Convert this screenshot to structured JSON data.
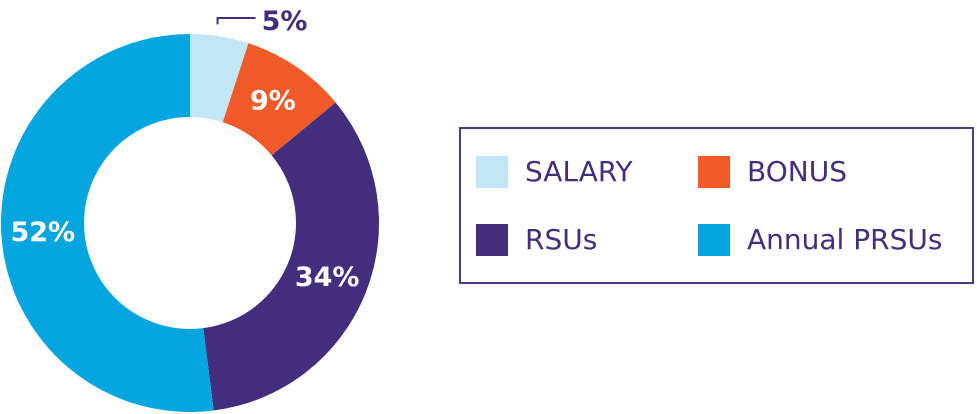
{
  "chart_data": {
    "type": "pie",
    "style": "donut",
    "categories": [
      "SALARY",
      "BONUS",
      "RSUs",
      "Annual PRSUs"
    ],
    "values": [
      5,
      9,
      34,
      52
    ],
    "labels": [
      "5%",
      "9%",
      "34%",
      "52%"
    ],
    "colors": [
      "#c3e6f6",
      "#f05a28",
      "#432d7d",
      "#05a6df"
    ],
    "legend_position": "right",
    "text_color": "#432d7d",
    "border_color": "#4b3b82"
  }
}
